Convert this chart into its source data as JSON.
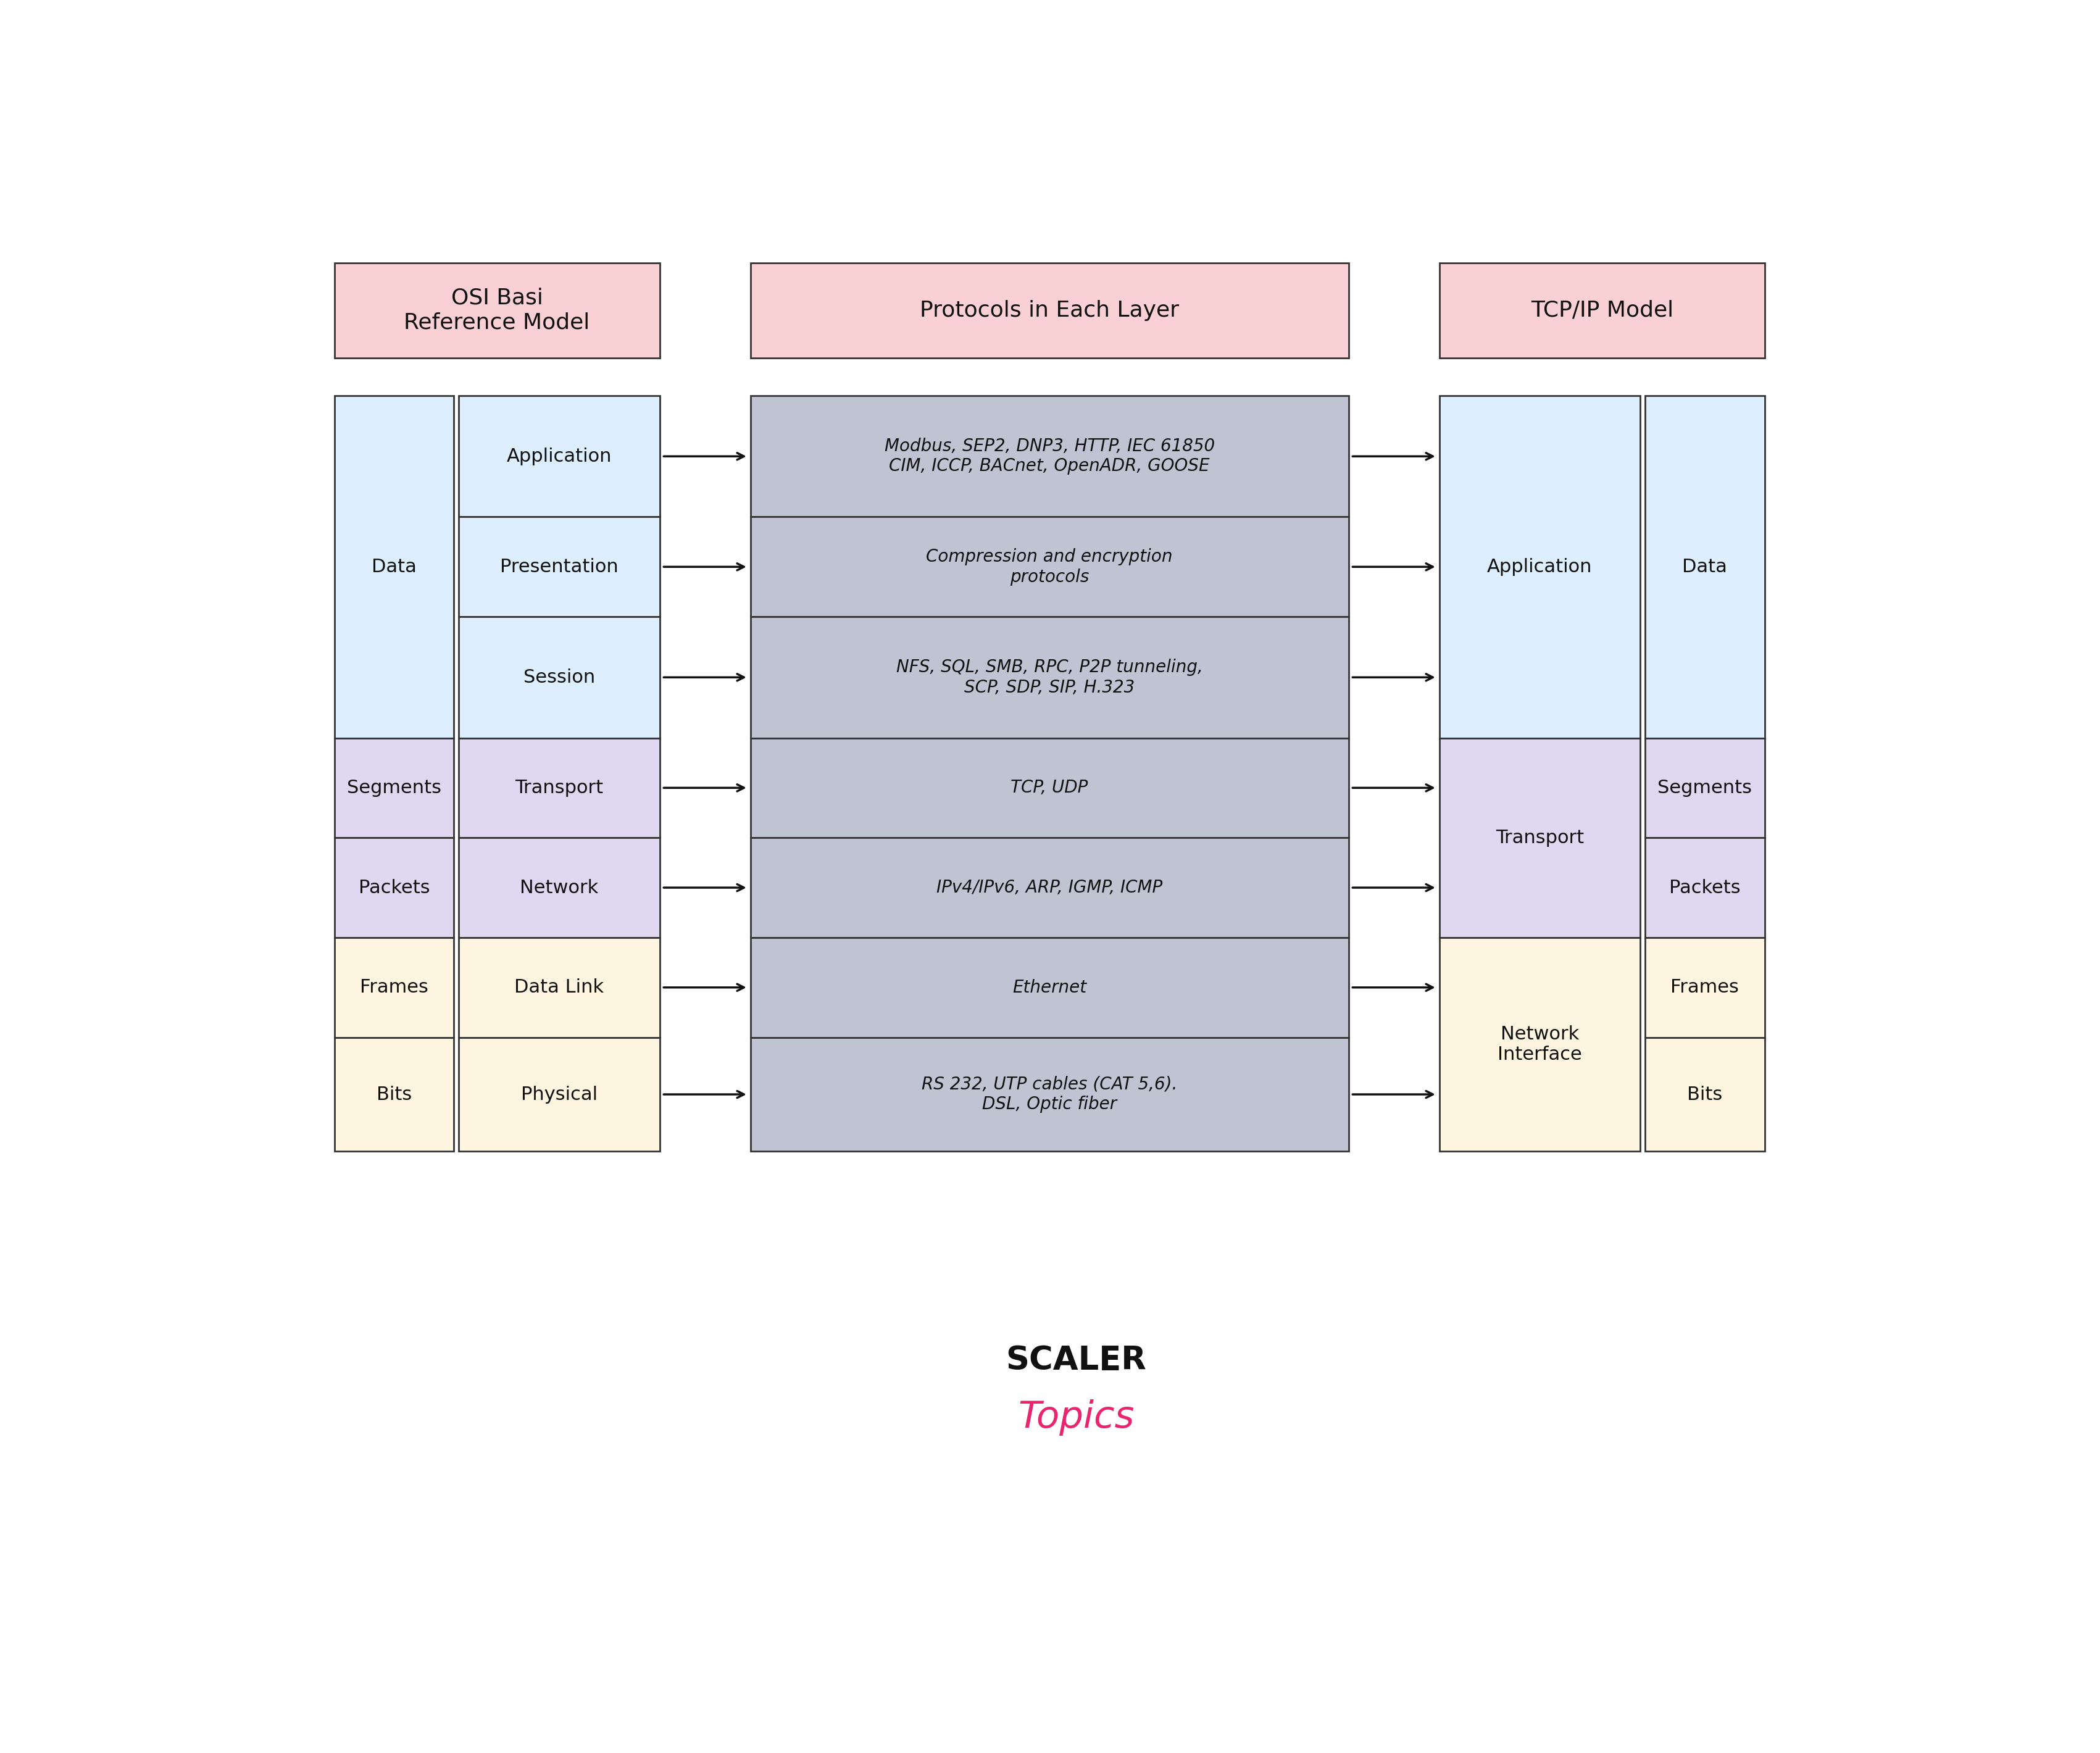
{
  "bg_color": "#ffffff",
  "title_box_color": "#f9d0d4",
  "title_border_color": "#333333",
  "osi_title": "OSI Basi\nReference Model",
  "protocols_title": "Protocols in Each Layer",
  "tcpip_title": "TCP/IP Model",
  "osi_layers": [
    "Application",
    "Presentation",
    "Session",
    "Transport",
    "Network",
    "Data Link",
    "Physical"
  ],
  "osi_layer_colors": [
    "#ddeeff",
    "#ddeeff",
    "#ddeeff",
    "#e0d8f0",
    "#e0d8f0",
    "#fdf5e0",
    "#fdf5e0"
  ],
  "protocol_texts": [
    "Modbus, SEP2, DNP3, HTTP, IEC 61850\nCIM, ICCP, BACnet, OpenADR, GOOSE",
    "Compression and encryption\nprotocols",
    "NFS, SQL, SMB, RPC, P2P tunneling,\nSCP, SDP, SIP, H.323",
    "TCP, UDP",
    "IPv4/IPv6, ARP, IGMP, ICMP",
    "Ethernet",
    "RS 232, UTP cables (CAT 5,6).\nDSL, Optic fiber"
  ],
  "protocol_box_color_dark": "#c0c4d2",
  "protocol_box_color_light": "#ccd0dc",
  "tcpip_layers": [
    {
      "label": "Application",
      "color": "#ddeeff",
      "osi_rows": [
        0,
        1,
        2
      ]
    },
    {
      "label": "Transport",
      "color": "#e0d8f0",
      "osi_rows": [
        3,
        4
      ]
    },
    {
      "label": "Network\nInterface",
      "color": "#fdf5e0",
      "osi_rows": [
        5,
        6
      ]
    }
  ],
  "osi_data_groups": [
    {
      "label": "Data",
      "rows": [
        0,
        1,
        2
      ],
      "color": "#ddeeff"
    },
    {
      "label": "Segments",
      "rows": [
        3
      ],
      "color": "#e0d8f0"
    },
    {
      "label": "Packets",
      "rows": [
        4
      ],
      "color": "#e0d8f0"
    },
    {
      "label": "Frames",
      "rows": [
        5
      ],
      "color": "#fdf5e0"
    },
    {
      "label": "Bits",
      "rows": [
        6
      ],
      "color": "#fdf5e0"
    }
  ],
  "arrow_color": "#111111",
  "row_heights": [
    2.55,
    2.1,
    2.55,
    2.1,
    2.1,
    2.1,
    2.4
  ]
}
